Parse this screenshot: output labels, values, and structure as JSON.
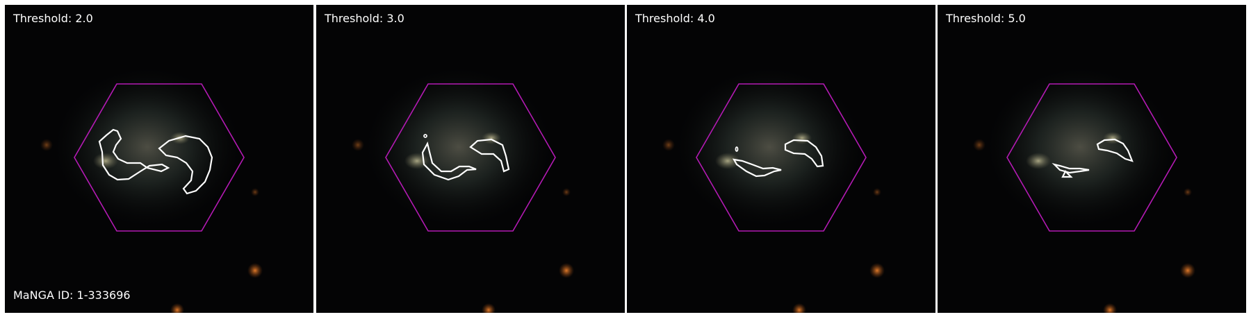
{
  "panels": [
    {
      "threshold_label": "Threshold: 2.0",
      "threshold": 2.0
    },
    {
      "threshold_label": "Threshold: 3.0",
      "threshold": 3.0
    },
    {
      "threshold_label": "Threshold: 4.0",
      "threshold": 4.0
    },
    {
      "threshold_label": "Threshold: 5.0",
      "threshold": 5.0
    }
  ],
  "manga_id_label": "MaNGA ID: 1-333696",
  "colors": {
    "hexagon": "#b41ab4",
    "contour": "#ffffff",
    "background": "#040405",
    "text": "#ffffff"
  }
}
